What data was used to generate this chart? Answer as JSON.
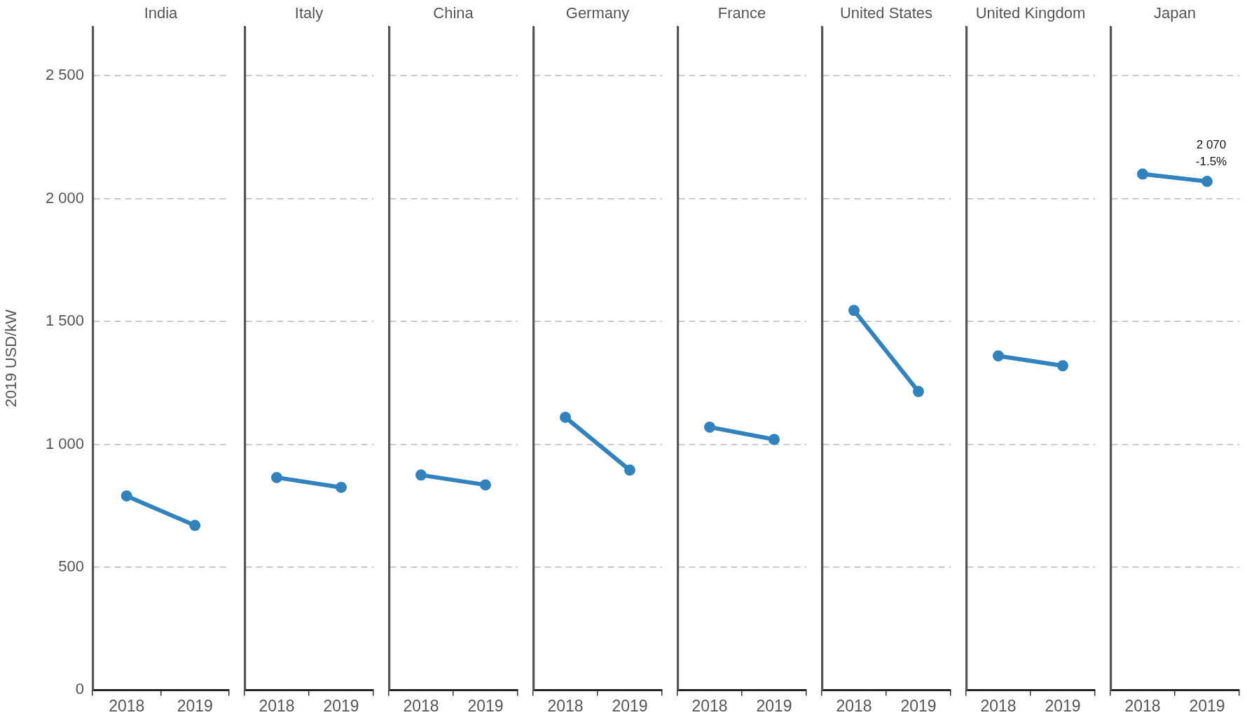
{
  "chart_data": [
    {
      "type": "line",
      "title": "India",
      "ylabel": "2019 USD/kW",
      "categories": [
        "2018",
        "2019"
      ],
      "values": [
        790,
        670
      ],
      "color": "#3182bd",
      "marker": "circle",
      "grid": "y",
      "ylim": [
        0,
        2700
      ],
      "yticks": [
        0,
        500,
        {
          "value": 1000,
          "label": "1 000"
        },
        {
          "value": 1500,
          "label": "1 500"
        },
        {
          "value": 2000,
          "label": "2 000"
        },
        {
          "value": 2500,
          "label": "2 500"
        }
      ]
    },
    {
      "type": "line",
      "title": "Italy",
      "categories": [
        "2018",
        "2019"
      ],
      "values": [
        865,
        825
      ],
      "color": "#3182bd",
      "marker": "circle",
      "grid": "y",
      "tick_labels": "x",
      "ylim": [
        0,
        2700
      ],
      "yticks": [
        0,
        500,
        1000,
        1500,
        2000,
        2500
      ]
    },
    {
      "type": "line",
      "title": "China",
      "categories": [
        "2018",
        "2019"
      ],
      "values": [
        875,
        835
      ],
      "color": "#3182bd",
      "marker": "circle",
      "grid": "y",
      "tick_labels": "x",
      "ylim": [
        0,
        2700
      ],
      "yticks": [
        0,
        500,
        1000,
        1500,
        2000,
        2500
      ]
    },
    {
      "type": "line",
      "title": "Germany",
      "categories": [
        "2018",
        "2019"
      ],
      "values": [
        1110,
        895
      ],
      "color": "#3182bd",
      "marker": "circle",
      "grid": "y",
      "tick_labels": "x",
      "ylim": [
        0,
        2700
      ],
      "yticks": [
        0,
        500,
        1000,
        1500,
        2000,
        2500
      ]
    },
    {
      "type": "line",
      "title": "France",
      "categories": [
        "2018",
        "2019"
      ],
      "values": [
        1070,
        1020
      ],
      "color": "#3182bd",
      "marker": "circle",
      "grid": "y",
      "tick_labels": "x",
      "ylim": [
        0,
        2700
      ],
      "yticks": [
        0,
        500,
        1000,
        1500,
        2000,
        2500
      ]
    },
    {
      "type": "line",
      "title": "United States",
      "categories": [
        "2018",
        "2019"
      ],
      "values": [
        1545,
        1215
      ],
      "color": "#3182bd",
      "marker": "circle",
      "grid": "y",
      "tick_labels": "x",
      "ylim": [
        0,
        2700
      ],
      "yticks": [
        0,
        500,
        1000,
        1500,
        2000,
        2500
      ]
    },
    {
      "type": "line",
      "title": "United Kingdom",
      "categories": [
        "2018",
        "2019"
      ],
      "values": [
        1360,
        1320
      ],
      "color": "#3182bd",
      "marker": "circle",
      "grid": "y",
      "tick_labels": "x",
      "ylim": [
        0,
        2700
      ],
      "yticks": [
        0,
        500,
        1000,
        1500,
        2000,
        2500
      ]
    },
    {
      "type": "line",
      "title": "Japan",
      "categories": [
        "2018",
        "2019"
      ],
      "values": [
        2100,
        2070
      ],
      "color": "#3182bd",
      "marker": "circle",
      "grid": "y",
      "tick_labels": "x",
      "ylim": [
        0,
        2700
      ],
      "yticks": [
        0,
        500,
        1000,
        1500,
        2000,
        2500
      ],
      "annotations": [
        {
          "text": "2 070",
          "x": "2019",
          "y": 2070
        },
        {
          "text": "-1.5%",
          "x": "2019",
          "y": 2070
        }
      ]
    }
  ]
}
